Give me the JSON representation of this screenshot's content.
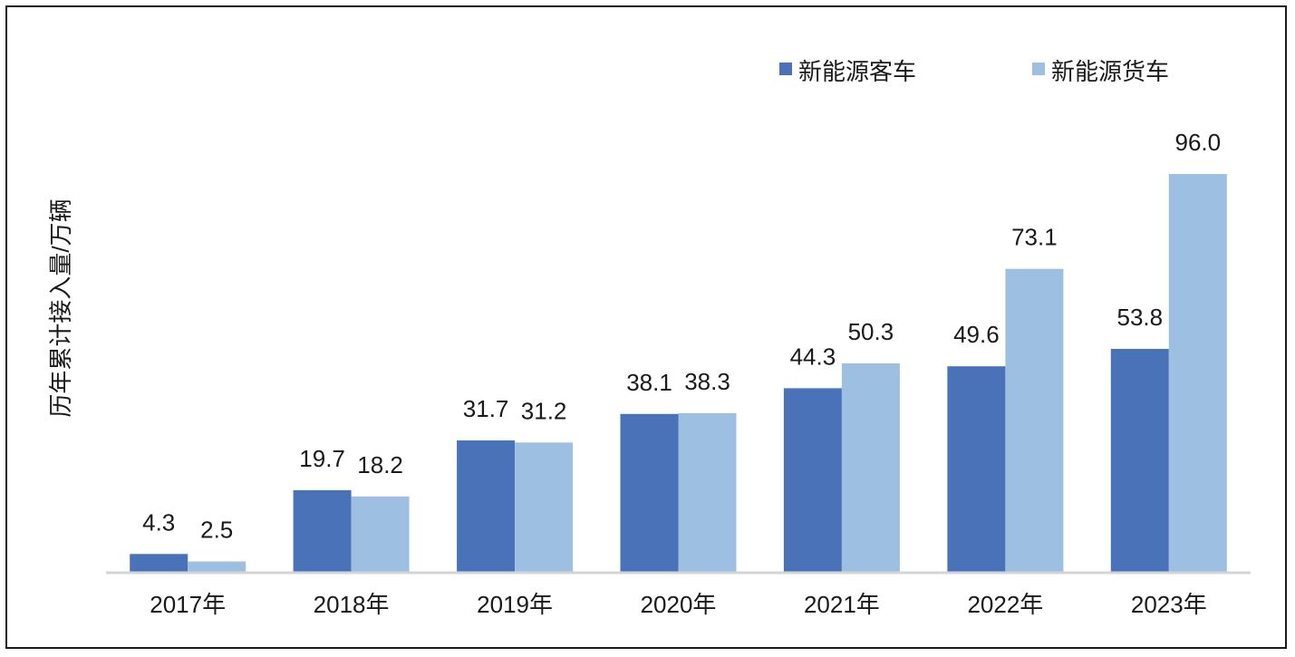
{
  "chart_data": {
    "type": "bar",
    "ylabel": "历年累计接入量/万辆",
    "categories": [
      "2017年",
      "2018年",
      "2019年",
      "2020年",
      "2021年",
      "2022年",
      "2023年"
    ],
    "series": [
      {
        "name": "新能源客车",
        "color": "#4a72b8",
        "values": [
          4.3,
          19.7,
          31.7,
          38.1,
          44.3,
          49.6,
          53.8
        ]
      },
      {
        "name": "新能源货车",
        "color": "#9dc0e2",
        "values": [
          2.5,
          18.2,
          31.2,
          38.3,
          50.3,
          73.1,
          96.0
        ]
      }
    ],
    "ylim": [
      0,
      100
    ],
    "grid": false,
    "legend_position": "top-right",
    "data_labels": true
  }
}
